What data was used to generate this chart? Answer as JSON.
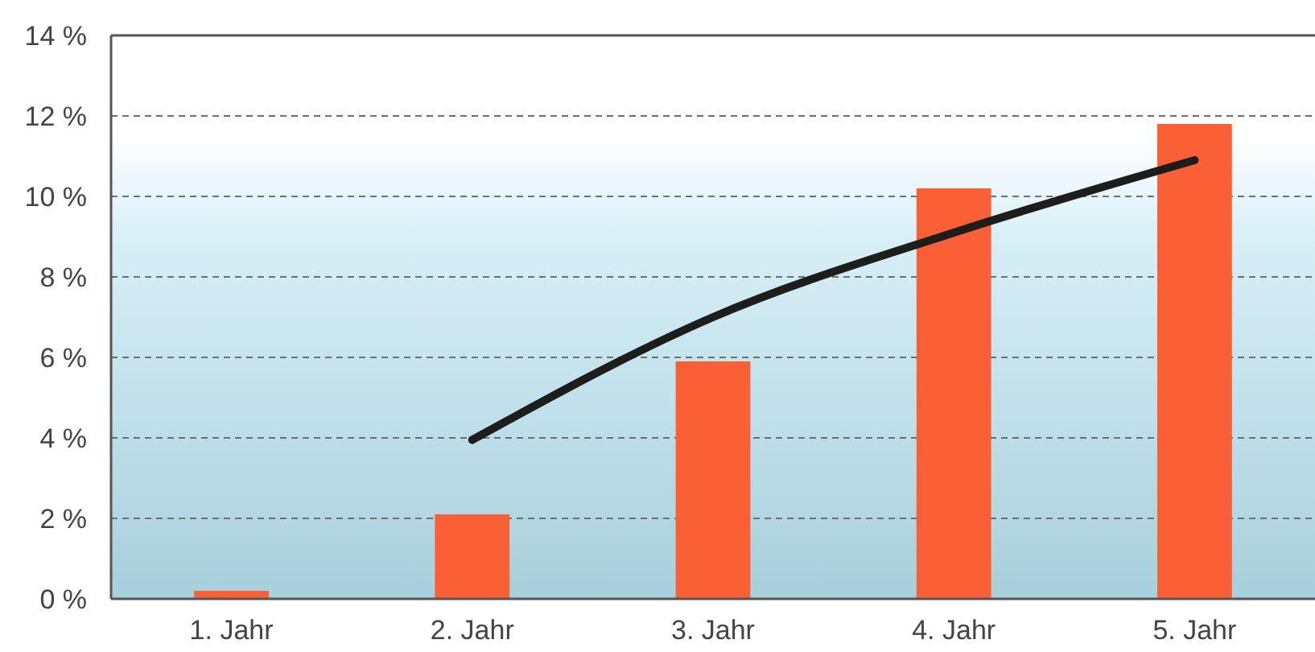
{
  "chart_data": {
    "type": "bar",
    "categories": [
      "1. Jahr",
      "2. Jahr",
      "3. Jahr",
      "4. Jahr",
      "5. Jahr"
    ],
    "series": [
      {
        "color": "#fa5f36",
        "values": [
          0.2,
          2.1,
          5.9,
          10.2,
          11.8
        ]
      },
      {
        "type": "line",
        "color": "#1d1d1b",
        "values": [
          null,
          3.95,
          7.0,
          9.1,
          10.9
        ]
      }
    ],
    "ylim": [
      0,
      14
    ],
    "yticks": [
      {
        "value": 0,
        "label": "0 %"
      },
      {
        "value": 2,
        "label": "2 %"
      },
      {
        "value": 4,
        "label": "4 %"
      },
      {
        "value": 6,
        "label": "6 %"
      },
      {
        "value": 8,
        "label": "8 %"
      },
      {
        "value": 10,
        "label": "10 %"
      },
      {
        "value": 12,
        "label": "12 %"
      },
      {
        "value": 14,
        "label": "14 %"
      }
    ],
    "grid": "y",
    "line_style": "solid",
    "marker": "none"
  }
}
